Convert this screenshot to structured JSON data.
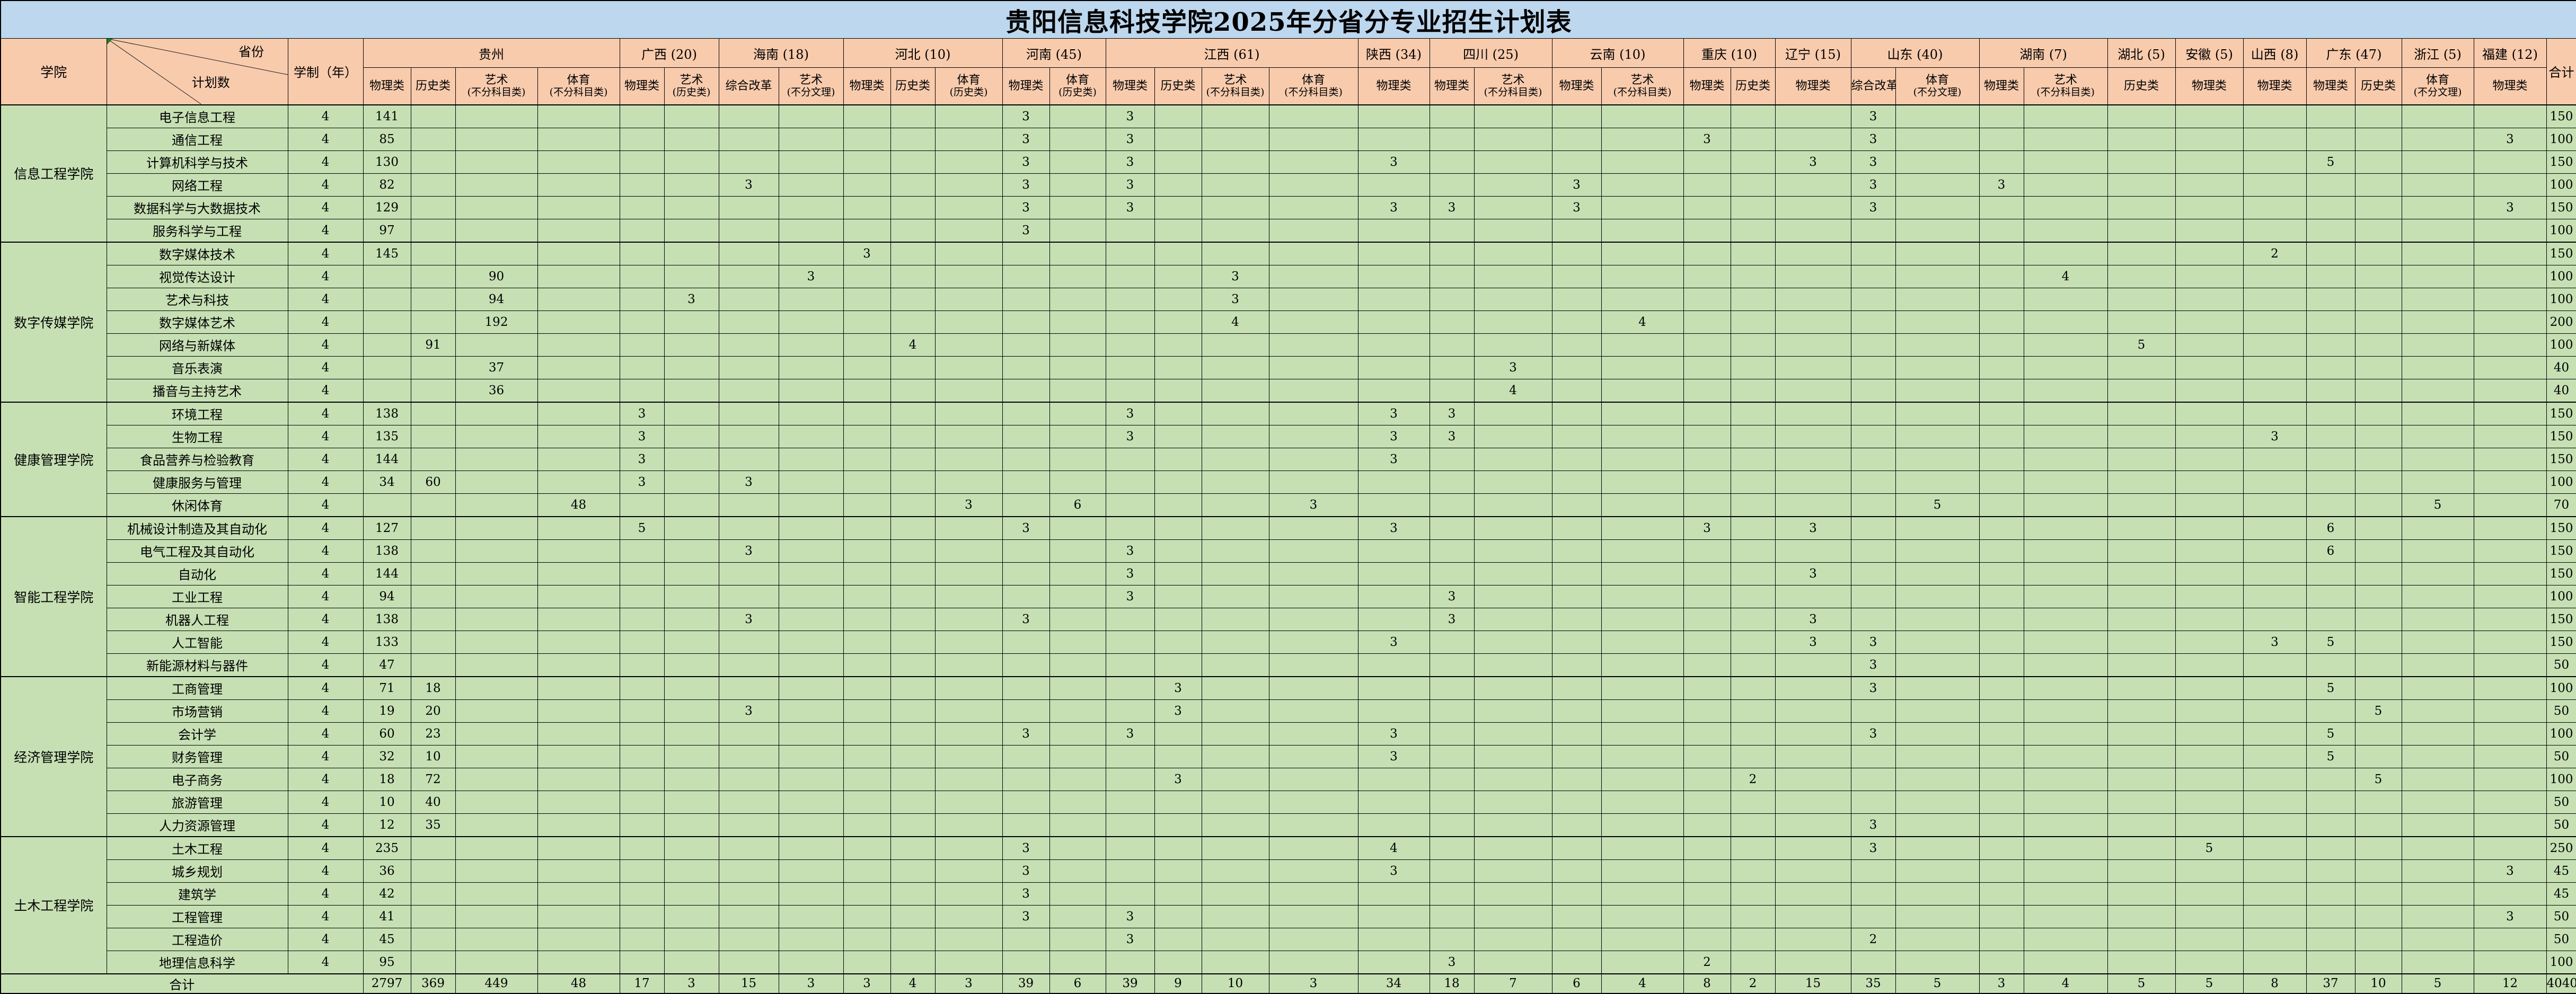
{
  "title": "贵阳信息科技学院2025年分省分专业招生计划表",
  "colors": {
    "title_bg": "#BDD7EE",
    "header_bg": "#F8CBAD",
    "body_bg": "#C6E0B4",
    "border": "#000000"
  },
  "header": {
    "college_label": "学院",
    "diagonal": {
      "top_right": "省份",
      "bottom_left": "计划数"
    },
    "years_label": "学制（年）",
    "total_label": "合计",
    "provinces": [
      {
        "name": "贵州",
        "subs": [
          {
            "l1": "物理类"
          },
          {
            "l1": "历史类"
          },
          {
            "l1": "艺术",
            "l2": "(不分科目类)"
          },
          {
            "l1": "体育",
            "l2": "(不分科目类)"
          }
        ]
      },
      {
        "name": "广西 (20)",
        "subs": [
          {
            "l1": "物理类"
          },
          {
            "l1": "艺术",
            "l2": "(历史类)"
          }
        ]
      },
      {
        "name": "海南 (18)",
        "subs": [
          {
            "l1": "综合改革"
          },
          {
            "l1": "艺术",
            "l2": "(不分文理)"
          }
        ]
      },
      {
        "name": "河北 (10)",
        "subs": [
          {
            "l1": "物理类"
          },
          {
            "l1": "历史类"
          },
          {
            "l1": "体育",
            "l2": "(历史类)"
          }
        ]
      },
      {
        "name": "河南 (45)",
        "subs": [
          {
            "l1": "物理类"
          },
          {
            "l1": "体育",
            "l2": "(历史类)"
          }
        ]
      },
      {
        "name": "江西 (61)",
        "subs": [
          {
            "l1": "物理类"
          },
          {
            "l1": "历史类"
          },
          {
            "l1": "艺术",
            "l2": "(不分科目类)"
          },
          {
            "l1": "体育",
            "l2": "(不分科目类)"
          }
        ]
      },
      {
        "name": "陕西 (34)",
        "subs": [
          {
            "l1": "物理类"
          }
        ]
      },
      {
        "name": "四川 (25)",
        "subs": [
          {
            "l1": "物理类"
          },
          {
            "l1": "艺术",
            "l2": "(不分科目类)"
          }
        ]
      },
      {
        "name": "云南 (10)",
        "subs": [
          {
            "l1": "物理类"
          },
          {
            "l1": "艺术",
            "l2": "(不分科目类)"
          }
        ]
      },
      {
        "name": "重庆 (10)",
        "subs": [
          {
            "l1": "物理类"
          },
          {
            "l1": "历史类"
          }
        ]
      },
      {
        "name": "辽宁 (15)",
        "subs": [
          {
            "l1": "物理类"
          }
        ]
      },
      {
        "name": "山东 (40)",
        "subs": [
          {
            "l1": "综合改革"
          },
          {
            "l1": "体育",
            "l2": "(不分文理)"
          }
        ]
      },
      {
        "name": "湖南 (7)",
        "subs": [
          {
            "l1": "物理类"
          },
          {
            "l1": "艺术",
            "l2": "(不分科目类)"
          }
        ]
      },
      {
        "name": "湖北 (5)",
        "subs": [
          {
            "l1": "历史类"
          }
        ]
      },
      {
        "name": "安徽 (5)",
        "subs": [
          {
            "l1": "物理类"
          }
        ]
      },
      {
        "name": "山西 (8)",
        "subs": [
          {
            "l1": "物理类"
          }
        ]
      },
      {
        "name": "广东 (47)",
        "subs": [
          {
            "l1": "物理类"
          },
          {
            "l1": "历史类"
          }
        ]
      },
      {
        "name": "浙江 (5)",
        "subs": [
          {
            "l1": "体育",
            "l2": "(不分文理)"
          }
        ]
      },
      {
        "name": "福建 (12)",
        "subs": [
          {
            "l1": "物理类"
          }
        ]
      }
    ]
  },
  "colleges": [
    {
      "name": "信息工程学院",
      "majors": [
        {
          "name": "电子信息工程",
          "y": "4",
          "v": {
            "0": "141",
            "11": "3",
            "13": "3",
            "25": "3"
          },
          "t": "150"
        },
        {
          "name": "通信工程",
          "y": "4",
          "v": {
            "0": "85",
            "11": "3",
            "13": "3",
            "22": "3",
            "25": "3",
            "35": "3"
          },
          "t": "100"
        },
        {
          "name": "计算机科学与技术",
          "y": "4",
          "v": {
            "0": "130",
            "11": "3",
            "13": "3",
            "17": "3",
            "24": "3",
            "25": "3",
            "32": "5"
          },
          "t": "150"
        },
        {
          "name": "网络工程",
          "y": "4",
          "v": {
            "0": "82",
            "6": "3",
            "11": "3",
            "13": "3",
            "20": "3",
            "25": "3",
            "27": "3"
          },
          "t": "100"
        },
        {
          "name": "数据科学与大数据技术",
          "y": "4",
          "v": {
            "0": "129",
            "11": "3",
            "13": "3",
            "17": "3",
            "18": "3",
            "20": "3",
            "25": "3",
            "35": "3"
          },
          "t": "150"
        },
        {
          "name": "服务科学与工程",
          "y": "4",
          "v": {
            "0": "97",
            "11": "3"
          },
          "t": "100"
        }
      ]
    },
    {
      "name": "数字传媒学院",
      "majors": [
        {
          "name": "数字媒体技术",
          "y": "4",
          "v": {
            "0": "145",
            "8": "3",
            "31": "2"
          },
          "t": "150"
        },
        {
          "name": "视觉传达设计",
          "y": "4",
          "v": {
            "2": "90",
            "7": "3",
            "15": "3",
            "28": "4"
          },
          "t": "100"
        },
        {
          "name": "艺术与科技",
          "y": "4",
          "v": {
            "2": "94",
            "5": "3",
            "15": "3"
          },
          "t": "100"
        },
        {
          "name": "数字媒体艺术",
          "y": "4",
          "v": {
            "2": "192",
            "15": "4",
            "21": "4"
          },
          "t": "200"
        },
        {
          "name": "网络与新媒体",
          "y": "4",
          "v": {
            "1": "91",
            "9": "4",
            "29": "5"
          },
          "t": "100"
        },
        {
          "name": "音乐表演",
          "y": "4",
          "v": {
            "2": "37",
            "19": "3"
          },
          "t": "40"
        },
        {
          "name": "播音与主持艺术",
          "y": "4",
          "v": {
            "2": "36",
            "19": "4"
          },
          "t": "40"
        }
      ]
    },
    {
      "name": "健康管理学院",
      "majors": [
        {
          "name": "环境工程",
          "y": "4",
          "v": {
            "0": "138",
            "4": "3",
            "13": "3",
            "17": "3",
            "18": "3"
          },
          "t": "150"
        },
        {
          "name": "生物工程",
          "y": "4",
          "v": {
            "0": "135",
            "4": "3",
            "13": "3",
            "17": "3",
            "18": "3",
            "31": "3"
          },
          "t": "150"
        },
        {
          "name": "食品营养与检验教育",
          "y": "4",
          "v": {
            "0": "144",
            "4": "3",
            "17": "3"
          },
          "t": "150"
        },
        {
          "name": "健康服务与管理",
          "y": "4",
          "v": {
            "0": "34",
            "1": "60",
            "4": "3",
            "6": "3"
          },
          "t": "100"
        },
        {
          "name": "休闲体育",
          "y": "4",
          "v": {
            "3": "48",
            "10": "3",
            "12": "6",
            "16": "3",
            "26": "5",
            "34": "5"
          },
          "t": "70"
        }
      ]
    },
    {
      "name": "智能工程学院",
      "majors": [
        {
          "name": "机械设计制造及其自动化",
          "y": "4",
          "v": {
            "0": "127",
            "4": "5",
            "11": "3",
            "17": "3",
            "22": "3",
            "24": "3",
            "32": "6"
          },
          "t": "150"
        },
        {
          "name": "电气工程及其自动化",
          "y": "4",
          "v": {
            "0": "138",
            "6": "3",
            "13": "3",
            "32": "6"
          },
          "t": "150"
        },
        {
          "name": "自动化",
          "y": "4",
          "v": {
            "0": "144",
            "13": "3",
            "24": "3"
          },
          "t": "150"
        },
        {
          "name": "工业工程",
          "y": "4",
          "v": {
            "0": "94",
            "13": "3",
            "18": "3"
          },
          "t": "100"
        },
        {
          "name": "机器人工程",
          "y": "4",
          "v": {
            "0": "138",
            "6": "3",
            "11": "3",
            "18": "3",
            "24": "3"
          },
          "t": "150"
        },
        {
          "name": "人工智能",
          "y": "4",
          "v": {
            "0": "133",
            "17": "3",
            "24": "3",
            "25": "3",
            "31": "3",
            "32": "5"
          },
          "t": "150"
        },
        {
          "name": "新能源材料与器件",
          "y": "4",
          "v": {
            "0": "47",
            "25": "3"
          },
          "t": "50"
        }
      ]
    },
    {
      "name": "经济管理学院",
      "majors": [
        {
          "name": "工商管理",
          "y": "4",
          "v": {
            "0": "71",
            "1": "18",
            "14": "3",
            "25": "3",
            "32": "5"
          },
          "t": "100"
        },
        {
          "name": "市场营销",
          "y": "4",
          "v": {
            "0": "19",
            "1": "20",
            "6": "3",
            "14": "3",
            "33": "5"
          },
          "t": "50"
        },
        {
          "name": "会计学",
          "y": "4",
          "v": {
            "0": "60",
            "1": "23",
            "11": "3",
            "13": "3",
            "17": "3",
            "25": "3",
            "32": "5"
          },
          "t": "100"
        },
        {
          "name": "财务管理",
          "y": "4",
          "v": {
            "0": "32",
            "1": "10",
            "17": "3",
            "32": "5"
          },
          "t": "50"
        },
        {
          "name": "电子商务",
          "y": "4",
          "v": {
            "0": "18",
            "1": "72",
            "14": "3",
            "23": "2",
            "33": "5"
          },
          "t": "100"
        },
        {
          "name": "旅游管理",
          "y": "4",
          "v": {
            "0": "10",
            "1": "40"
          },
          "t": "50"
        },
        {
          "name": "人力资源管理",
          "y": "4",
          "v": {
            "0": "12",
            "1": "35",
            "25": "3"
          },
          "t": "50"
        }
      ]
    },
    {
      "name": "土木工程学院",
      "majors": [
        {
          "name": "土木工程",
          "y": "4",
          "v": {
            "0": "235",
            "11": "3",
            "17": "4",
            "25": "3",
            "30": "5"
          },
          "t": "250"
        },
        {
          "name": "城乡规划",
          "y": "4",
          "v": {
            "0": "36",
            "11": "3",
            "17": "3",
            "35": "3"
          },
          "t": "45"
        },
        {
          "name": "建筑学",
          "y": "4",
          "v": {
            "0": "42",
            "11": "3"
          },
          "t": "45"
        },
        {
          "name": "工程管理",
          "y": "4",
          "v": {
            "0": "41",
            "11": "3",
            "13": "3",
            "35": "3"
          },
          "t": "50"
        },
        {
          "name": "工程造价",
          "y": "4",
          "v": {
            "0": "45",
            "13": "3",
            "25": "2"
          },
          "t": "50"
        },
        {
          "name": "地理信息科学",
          "y": "4",
          "v": {
            "0": "95",
            "18": "3",
            "22": "2"
          },
          "t": "100"
        }
      ]
    }
  ],
  "summary": {
    "label": "合计",
    "v": {
      "0": "2797",
      "1": "369",
      "2": "449",
      "3": "48",
      "4": "17",
      "5": "3",
      "6": "15",
      "7": "3",
      "8": "3",
      "9": "4",
      "10": "3",
      "11": "39",
      "12": "6",
      "13": "39",
      "14": "9",
      "15": "10",
      "16": "3",
      "17": "34",
      "18": "18",
      "19": "7",
      "20": "6",
      "21": "4",
      "22": "8",
      "23": "2",
      "24": "15",
      "25": "35",
      "26": "5",
      "27": "3",
      "28": "4",
      "29": "5",
      "30": "5",
      "31": "8",
      "32": "37",
      "33": "10",
      "34": "5",
      "35": "12"
    },
    "t": "4040"
  }
}
